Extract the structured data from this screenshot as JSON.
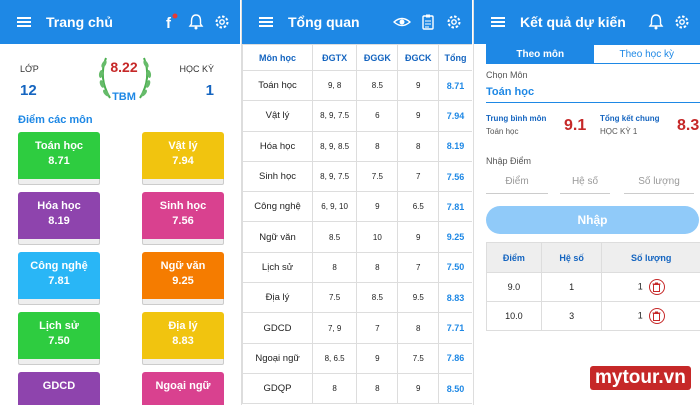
{
  "screen1": {
    "title": "Trang chủ",
    "lop_label": "LỚP",
    "lop_value": "12",
    "hk_label": "HỌC KỲ",
    "hk_value": "1",
    "average": "8.22",
    "tbm": "TBM",
    "section_title": "Điểm các môn",
    "subjects": [
      {
        "name": "Toán học",
        "score": "8.71",
        "color": "#2ecc40"
      },
      {
        "name": "Vật lý",
        "score": "7.94",
        "color": "#f1c40f"
      },
      {
        "name": "Hóa học",
        "score": "8.19",
        "color": "#8e44ad"
      },
      {
        "name": "Sinh học",
        "score": "7.56",
        "color": "#d9418f"
      },
      {
        "name": "Công nghệ",
        "score": "7.81",
        "color": "#29b6f6"
      },
      {
        "name": "Ngữ văn",
        "score": "9.25",
        "color": "#f57c00"
      },
      {
        "name": "Lịch sử",
        "score": "7.50",
        "color": "#2ecc40"
      },
      {
        "name": "Địa lý",
        "score": "8.83",
        "color": "#f1c40f"
      },
      {
        "name": "GDCD",
        "score": "",
        "color": "#8e44ad"
      },
      {
        "name": "Ngoại ngữ",
        "score": "",
        "color": "#d9418f"
      }
    ]
  },
  "screen2": {
    "title": "Tổng quan",
    "headers": [
      "Môn học",
      "ĐGTX",
      "ĐGGK",
      "ĐGCK",
      "Tổng"
    ],
    "rows": [
      [
        "Toán học",
        "9, 8",
        "8.5",
        "9",
        "8.71"
      ],
      [
        "Vật lý",
        "8, 9, 7.5",
        "6",
        "9",
        "7.94"
      ],
      [
        "Hóa học",
        "8, 9, 8.5",
        "8",
        "8",
        "8.19"
      ],
      [
        "Sinh học",
        "8, 9, 7.5",
        "7.5",
        "7",
        "7.56"
      ],
      [
        "Công nghệ",
        "6, 9, 10",
        "9",
        "6.5",
        "7.81"
      ],
      [
        "Ngữ văn",
        "8.5",
        "10",
        "9",
        "9.25"
      ],
      [
        "Lịch sử",
        "8",
        "8",
        "7",
        "7.50"
      ],
      [
        "Địa lý",
        "7.5",
        "8.5",
        "9.5",
        "8.83"
      ],
      [
        "GDCD",
        "7, 9",
        "7",
        "8",
        "7.71"
      ],
      [
        "Ngoại ngữ",
        "8, 6.5",
        "9",
        "7.5",
        "7.86"
      ],
      [
        "GDQP",
        "8",
        "8",
        "9",
        "8.50"
      ]
    ]
  },
  "screen3": {
    "title": "Kết quả dự kiến",
    "tab_mon": "Theo môn",
    "tab_hk": "Theo học kỳ",
    "chon_mon": "Chọn Môn",
    "mon_value": "Toán học",
    "tb_mon_label": "Trung bình môn",
    "tb_mon_sub": "Toán học",
    "tb_mon_value": "9.1",
    "tk_label": "Tổng kết chung",
    "tk_sub": "HỌC KỲ 1",
    "tk_value": "8.3",
    "nhap_diem": "Nhập Điểm",
    "ph_diem": "Điểm",
    "ph_heso": "Hệ số",
    "ph_soluong": "Số lượng",
    "btn_nhap": "Nhập",
    "table_headers": [
      "Điểm",
      "Hệ số",
      "Số lượng"
    ],
    "table_rows": [
      [
        "9.0",
        "1",
        "1"
      ],
      [
        "10.0",
        "3",
        "1"
      ]
    ]
  },
  "watermark": "mytour.vn",
  "colors": {
    "primary": "#1e88e5",
    "score_red": "#c62828"
  }
}
